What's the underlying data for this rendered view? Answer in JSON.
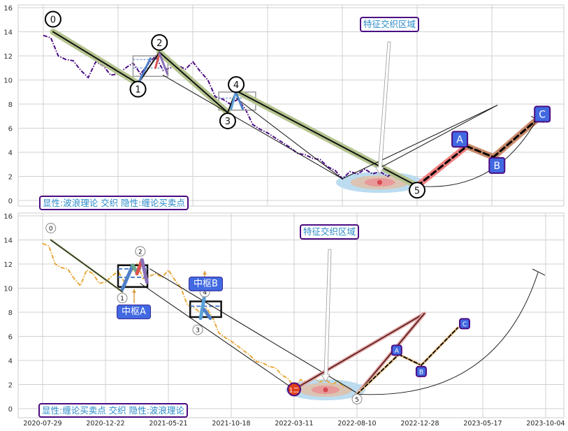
{
  "chart_data": [
    {
      "type": "line",
      "panel": "top",
      "ylim": [
        -0.5,
        16.3
      ],
      "yticks": [
        "0",
        "2",
        "4",
        "6",
        "8",
        "10",
        "12",
        "14",
        "16"
      ],
      "x_tick_labels_shown": false,
      "grid": true,
      "price": {
        "color": "#4b0c82",
        "style": "dash-dot",
        "start": "2020-07-29",
        "end": "2022-07-11",
        "values": [
          13.7,
          13.5,
          12.0,
          11.7,
          11.6,
          10.8,
          10.2,
          11.5,
          11.2,
          10.4,
          10.5,
          11.0,
          11.4,
          10.5,
          11.3,
          12.0,
          10.8,
          11.0,
          11.2,
          10.9,
          11.5,
          10.7,
          10.0,
          8.6,
          8.4,
          8.0,
          8.4,
          7.6,
          6.3,
          5.9,
          5.6,
          5.2,
          4.8,
          4.4,
          3.9,
          3.8,
          3.5,
          3.4,
          2.8,
          2.5,
          1.8,
          2.4,
          2.2,
          2.6,
          2.2,
          2.4,
          2.0,
          2.3,
          1.7
        ]
      },
      "waves": [
        {
          "label": "0",
          "date": "2020-08-17",
          "value": 14.0
        },
        {
          "label": "1",
          "date": "2021-01-31",
          "value": 9.7
        },
        {
          "label": "2",
          "date": "2021-03-15",
          "value": 12.3
        },
        {
          "label": "3",
          "date": "2021-07-30",
          "value": 7.3
        },
        {
          "label": "4",
          "date": "2021-08-16",
          "value": 9.1
        },
        {
          "label": "5",
          "date": "2022-08-10",
          "value": 1.2
        }
      ],
      "abc": [
        {
          "label": "A",
          "date": "2022-11-11",
          "value": 4.5
        },
        {
          "label": "B",
          "date": "2022-12-31",
          "value": 3.6
        },
        {
          "label": "C",
          "date": "2023-03-22",
          "value": 6.7
        }
      ],
      "zones": [
        {
          "start": "2021-01-21",
          "end": "2021-04-01",
          "low": 10.3,
          "high": 12.0,
          "mid": [
            11.0,
            11.7
          ]
        },
        {
          "start": "2021-07-12",
          "end": "2021-09-24",
          "low": 7.5,
          "high": 9.0,
          "mid": [
            8.5
          ]
        }
      ],
      "sub_strokes": [
        {
          "color": "#4f7fc7",
          "from": [
            "2021-01-31",
            9.7
          ],
          "to": [
            "2021-02-25",
            11.8
          ]
        },
        {
          "color": "#d9534f",
          "from": [
            "2021-03-07",
            11.0
          ],
          "to": [
            "2021-03-15",
            12.2
          ]
        },
        {
          "color": "#8a6fb8",
          "from": [
            "2021-03-15",
            12.2
          ],
          "to": [
            "2021-03-31",
            10.5
          ]
        },
        {
          "color": "#5aa0d8",
          "from": [
            "2021-08-06",
            7.6
          ],
          "to": [
            "2021-08-15",
            9.0
          ]
        },
        {
          "color": "#4f7fc7",
          "from": [
            "2021-08-15",
            9.0
          ],
          "to": [
            "2021-08-29",
            7.6
          ]
        }
      ],
      "aux_lines": [
        [
          [
            "2021-03-22",
            10.4
          ],
          [
            "2022-03-11",
            1.8
          ]
        ],
        [
          [
            "2021-08-16",
            8.5
          ],
          [
            "2022-03-11",
            1.8
          ]
        ],
        [
          [
            "2022-03-11",
            1.8
          ],
          [
            "2023-01-07",
            7.9
          ]
        ],
        [
          [
            "2022-05-26",
            2.7
          ],
          [
            "2023-01-07",
            7.9
          ]
        ]
      ],
      "intersection_zone": {
        "date": "2022-05-26",
        "value": 1.5
      },
      "arc": {
        "from": [
          "2022-08-10",
          1.2
        ],
        "to": [
          "2023-03-22",
          6.7
        ]
      },
      "annotation": "特征交织区域",
      "caption": "显性:波浪理论 交织 隐性:缠论买卖点"
    },
    {
      "type": "line",
      "panel": "bottom",
      "ylim": [
        -0.5,
        16.3
      ],
      "yticks": [
        "0",
        "2",
        "4",
        "6",
        "8",
        "10",
        "12",
        "14",
        "16"
      ],
      "xticks": [
        "2020-07-29",
        "2020-12-22",
        "2021-05-21",
        "2021-10-18",
        "2022-03-11",
        "2022-08-10",
        "2022-12-28",
        "2023-05-17",
        "2023-10-04"
      ],
      "grid": true,
      "price": {
        "color": "#e8a93a",
        "style": "dash-dot",
        "start": "2020-07-29",
        "end": "2022-07-11",
        "values": [
          13.7,
          13.5,
          12.0,
          11.7,
          11.6,
          10.8,
          10.2,
          11.5,
          11.2,
          10.4,
          10.5,
          11.0,
          11.4,
          10.5,
          11.3,
          12.0,
          10.8,
          11.0,
          11.2,
          10.9,
          11.5,
          10.7,
          10.0,
          8.6,
          8.4,
          8.0,
          8.4,
          7.6,
          6.3,
          5.9,
          5.6,
          5.2,
          4.8,
          4.4,
          3.9,
          3.8,
          3.5,
          3.4,
          2.8,
          2.5,
          1.8,
          2.4,
          2.2,
          2.6,
          2.2,
          2.4,
          2.0,
          2.3,
          1.7
        ]
      },
      "waves": [
        {
          "label": "0",
          "date": "2020-08-17",
          "value": 14.0
        },
        {
          "label": "1",
          "date": "2021-01-31",
          "value": 9.7
        },
        {
          "label": "2",
          "date": "2021-03-15",
          "value": 12.3
        },
        {
          "label": "3",
          "date": "2021-07-30",
          "value": 7.3
        },
        {
          "label": "4",
          "date": "2021-08-16",
          "value": 9.1
        },
        {
          "label": "5",
          "date": "2022-08-10",
          "value": 1.2
        }
      ],
      "abc": [
        {
          "label": "A",
          "date": "2022-11-11",
          "value": 4.5
        },
        {
          "label": "B",
          "date": "2022-12-31",
          "value": 3.6
        },
        {
          "label": "C",
          "date": "2023-03-22",
          "value": 6.7
        }
      ],
      "buy_point": {
        "label": "1二",
        "date": "2022-03-11",
        "value": 1.6,
        "color": "#e0401a"
      },
      "zones": [
        {
          "name": "中枢A",
          "start": "2021-01-21",
          "end": "2021-04-01",
          "low": 10.1,
          "high": 11.9,
          "mid": [
            11.6,
            10.9
          ]
        },
        {
          "name": "中枢B",
          "start": "2021-07-12",
          "end": "2021-09-24",
          "low": 7.6,
          "high": 8.9,
          "mid": [
            8.5
          ]
        }
      ],
      "sub_strokes": [
        {
          "color": "#4f7fc7",
          "from": [
            "2021-01-31",
            9.9
          ],
          "to": [
            "2021-02-25",
            11.9
          ]
        },
        {
          "color": "#6aa58a",
          "from": [
            "2021-02-25",
            11.9
          ],
          "to": [
            "2021-03-07",
            11.3
          ]
        },
        {
          "color": "#d9534f",
          "from": [
            "2021-03-07",
            11.2
          ],
          "to": [
            "2021-03-19",
            12.35
          ]
        },
        {
          "color": "#8a6fb8",
          "from": [
            "2021-03-19",
            12.35
          ],
          "to": [
            "2021-03-31",
            10.5
          ]
        },
        {
          "color": "#5aa0d8",
          "from": [
            "2021-08-06",
            7.5
          ],
          "to": [
            "2021-08-15",
            9.3
          ]
        },
        {
          "color": "#4f7fc7",
          "from": [
            "2021-08-15",
            8.2
          ],
          "to": [
            "2021-08-29",
            7.5
          ]
        }
      ],
      "aux_lines": [
        [
          [
            "2021-03-15",
            10.4
          ],
          [
            "2022-03-11",
            1.6
          ]
        ],
        [
          [
            "2021-04-07",
            11.6
          ],
          [
            "2022-08-10",
            1.3
          ]
        ]
      ],
      "bold_lines": [
        [
          [
            "2022-03-11",
            1.6
          ],
          [
            "2023-01-07",
            7.9
          ]
        ],
        [
          [
            "2022-08-10",
            1.2
          ],
          [
            "2023-01-07",
            7.9
          ]
        ]
      ],
      "intersection_zone": {
        "date": "2022-05-26",
        "value": 1.56
      },
      "arc": {
        "from": [
          "2022-08-10",
          1.2
        ],
        "to": [
          "2023-09-17",
          11.3
        ]
      },
      "annotation": "特征交织区域",
      "caption": "显性:缠论买卖点 交织 隐性:波浪理论"
    }
  ]
}
